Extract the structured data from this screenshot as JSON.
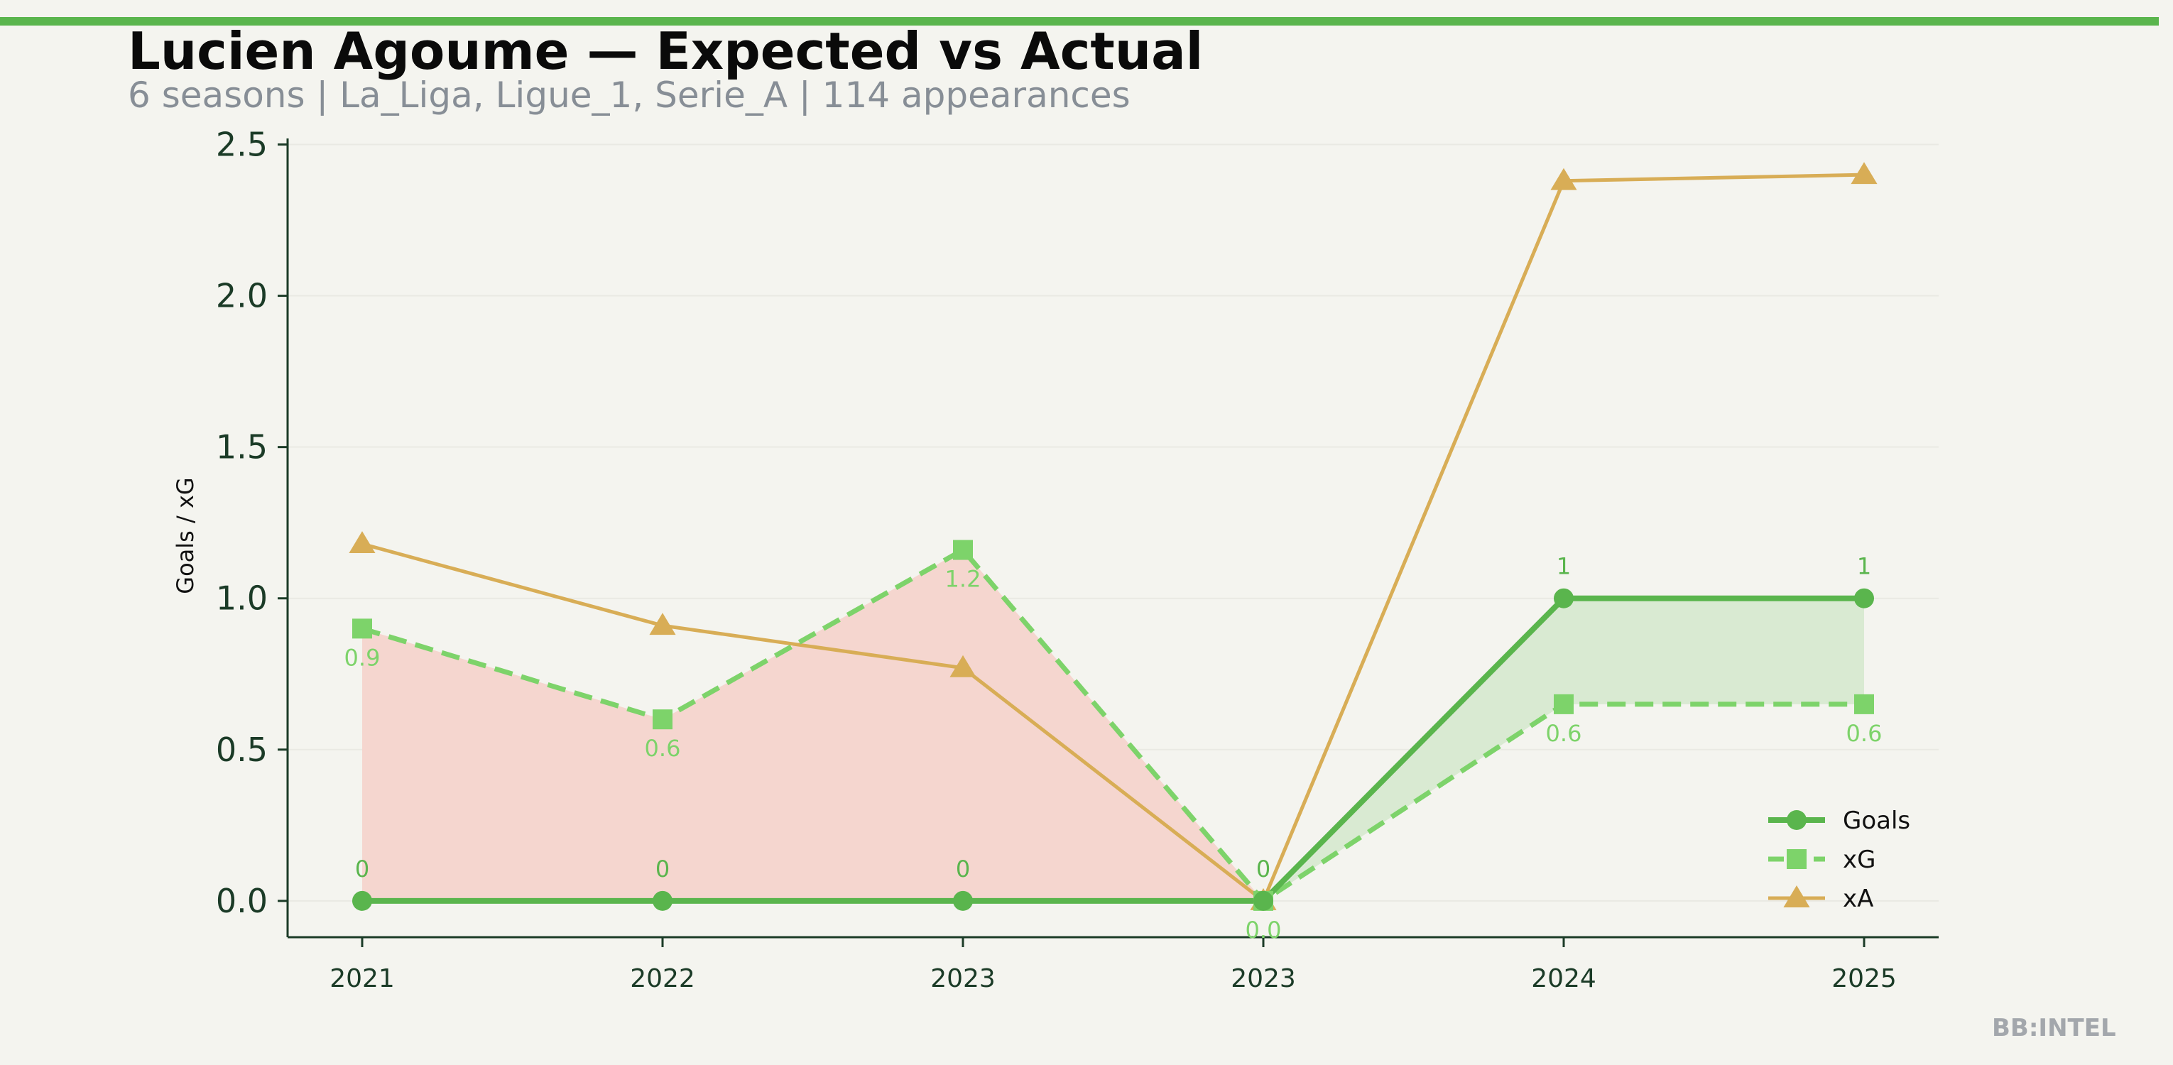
{
  "title": "Lucien Agoume — Expected vs Actual",
  "subtitle": "6 seasons | La_Liga, Ligue_1, Serie_A | 114 appearances",
  "watermark": "BB:INTEL",
  "colors": {
    "goals": "#5ab54d",
    "xg": "#7dd36a",
    "xa": "#d8ad56",
    "under_fill": "#f5d6cf",
    "over_fill": "#d9ead2",
    "axis": "#1b3b27"
  },
  "chart_data": {
    "type": "line",
    "categories": [
      "2021",
      "2022",
      "2023",
      "2023",
      "2024",
      "2025"
    ],
    "ylabel": "Goals / xG",
    "xlabel": "",
    "ylim": [
      -0.12,
      2.52
    ],
    "yticks": [
      0.0,
      0.5,
      1.0,
      1.5,
      2.0,
      2.5
    ],
    "ytick_labels": [
      "0.0",
      "0.5",
      "1.0",
      "1.5",
      "2.0",
      "2.5"
    ],
    "grid": true,
    "legend_position": "lower-right",
    "series": [
      {
        "name": "Goals",
        "key": "goals",
        "values": [
          0,
          0,
          0,
          0,
          1,
          1
        ],
        "labels": [
          "0",
          "0",
          "0",
          "0",
          "1",
          "1"
        ],
        "style": "solid",
        "marker": "circle"
      },
      {
        "name": "xG",
        "key": "xg",
        "values": [
          0.9,
          0.6,
          1.16,
          0.0,
          0.65,
          0.65
        ],
        "labels": [
          "0.9",
          "0.6",
          "1.2",
          "0.0",
          "0.6",
          "0.6"
        ],
        "style": "dashed",
        "marker": "square"
      },
      {
        "name": "xA",
        "key": "xa",
        "values": [
          1.18,
          0.91,
          0.77,
          0.0,
          2.38,
          2.4
        ],
        "style": "solid",
        "marker": "triangle"
      }
    ]
  }
}
